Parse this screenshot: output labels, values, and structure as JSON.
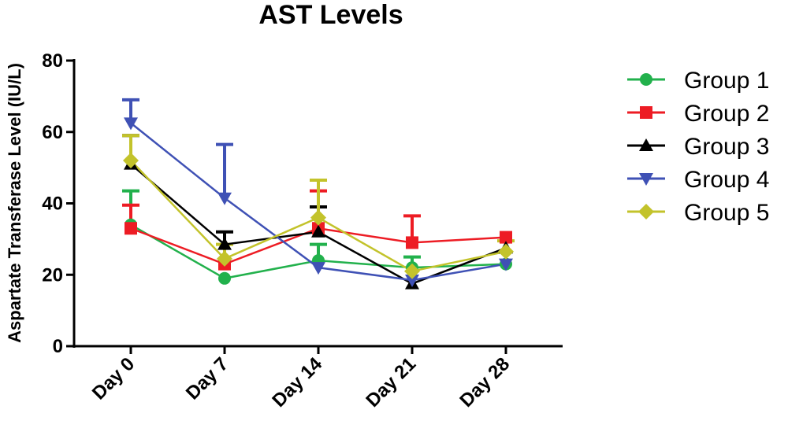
{
  "chart_data": {
    "type": "line",
    "title": "AST Levels",
    "xlabel": "",
    "ylabel": "Aspartate Transferase Level (IU/L)",
    "ylim": [
      0,
      80
    ],
    "yticks": [
      "0",
      "20",
      "40",
      "60",
      "80"
    ],
    "categories": [
      "Day 0",
      "Day 7",
      "Day 14",
      "Day 21",
      "Day 28"
    ],
    "legend_position": "right",
    "series": [
      {
        "name": "Group 1",
        "color": "#22b14c",
        "marker": "circle",
        "values": [
          34,
          19,
          24,
          22,
          23
        ],
        "errors": [
          9.5,
          0,
          4.5,
          3,
          0
        ]
      },
      {
        "name": "Group 2",
        "color": "#ed1c24",
        "marker": "square",
        "values": [
          33,
          23,
          33,
          29,
          30.5
        ],
        "errors": [
          6.5,
          0,
          10.5,
          7.5,
          0
        ]
      },
      {
        "name": "Group 3",
        "color": "#000000",
        "marker": "triangle-up",
        "values": [
          51,
          28.5,
          32,
          17.5,
          27.5
        ],
        "errors": [
          8,
          3.5,
          7,
          0,
          0
        ]
      },
      {
        "name": "Group 4",
        "color": "#3f51b5",
        "marker": "triangle-down",
        "values": [
          62.5,
          41.5,
          22,
          18.5,
          23
        ],
        "errors": [
          6.5,
          15,
          0,
          0,
          0
        ]
      },
      {
        "name": "Group 5",
        "color": "#c3c32b",
        "marker": "diamond",
        "values": [
          52,
          24.5,
          36,
          21,
          26.5
        ],
        "errors": [
          7,
          4,
          10.5,
          0,
          3
        ]
      }
    ]
  }
}
